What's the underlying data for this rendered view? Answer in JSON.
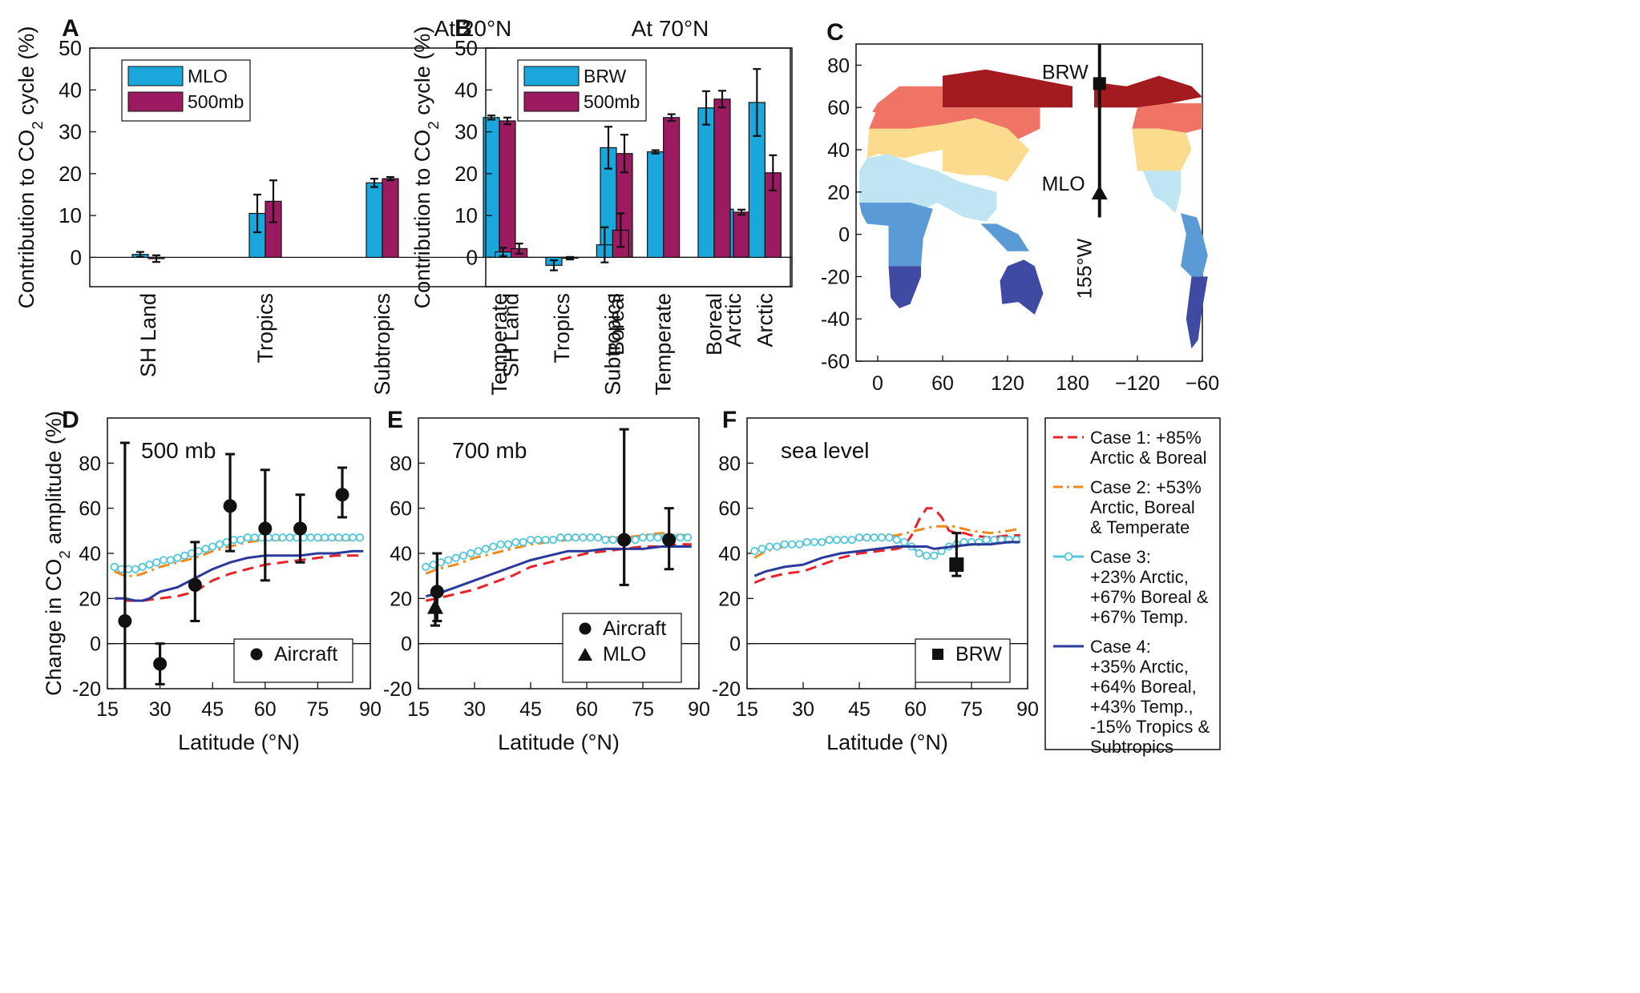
{
  "colors": {
    "mlo": "#1aa7dc",
    "p500": "#9c1a60",
    "case1": "#e8232a",
    "case2": "#f08a1d",
    "case3": "#55c7da",
    "case4": "#2a3a9a",
    "map_arctic_dark": "#a31a1f",
    "map_boreal": "#f07465",
    "map_temperate": "#fbdc8e",
    "map_subtropics": "#bfe5f3",
    "map_tropics": "#5b9bd5",
    "map_sh": "#3f4ba3"
  },
  "chart_data": [
    {
      "panel": "A",
      "type": "bar",
      "title": "At 20°N",
      "ylabel": "Contribution to CO2 cycle (%)",
      "ylabel_parts": [
        "Contribution to CO",
        "2",
        " cycle (%)"
      ],
      "ylim": [
        -7,
        50
      ],
      "yticks": [
        0,
        10,
        20,
        30,
        40,
        50
      ],
      "categories": [
        "SH Land",
        "Tropics",
        "Subtropics",
        "Temperate",
        "Boreal",
        "Arctic"
      ],
      "legend": "top-left",
      "series": [
        {
          "name": "MLO",
          "values": [
            0.7,
            10.5,
            17.8,
            33.4,
            26.2,
            11.5
          ],
          "err": [
            0.6,
            4.5,
            1.0,
            0.5,
            5.0,
            0.4
          ]
        },
        {
          "name": "500mb",
          "values": [
            -0.3,
            13.4,
            18.8,
            32.6,
            24.8,
            10.8
          ],
          "err": [
            0.8,
            5.0,
            0.4,
            0.8,
            4.5,
            0.6
          ]
        }
      ]
    },
    {
      "panel": "B",
      "type": "bar",
      "title": "At 70°N",
      "ylabel": "Contribution to CO2 cycle (%)",
      "ylabel_parts": [
        "Contribution to CO",
        "2",
        " cycle (%)"
      ],
      "ylim": [
        -7,
        50
      ],
      "yticks": [
        0,
        10,
        20,
        30,
        40,
        50
      ],
      "categories": [
        "SH Land",
        "Tropics",
        "Subtropics",
        "Temperate",
        "Boreal",
        "Arctic"
      ],
      "legend": "top-left",
      "series": [
        {
          "name": "BRW",
          "values": [
            1.3,
            -1.9,
            3.0,
            25.2,
            35.7,
            37.0
          ],
          "err": [
            1.0,
            1.2,
            4.2,
            0.4,
            4.0,
            8.0
          ]
        },
        {
          "name": "500mb",
          "values": [
            2.1,
            -0.2,
            6.5,
            33.4,
            37.8,
            20.2
          ],
          "err": [
            1.2,
            0.3,
            4.0,
            0.8,
            2.0,
            4.2
          ]
        }
      ]
    },
    {
      "panel": "C",
      "type": "map",
      "xticks": [
        "0",
        "60",
        "120",
        "180",
        "−120",
        "−60"
      ],
      "yticks": [
        80,
        60,
        40,
        20,
        0,
        -20,
        -40,
        -60
      ],
      "ylim": [
        -60,
        90
      ],
      "x_range_lon": [
        -20,
        300
      ],
      "annotations": {
        "brw": "BRW",
        "mlo": "MLO",
        "meridian": "155°W"
      },
      "stations": [
        {
          "name": "BRW",
          "lat": 71.3
        },
        {
          "name": "MLO",
          "lat": 19.5
        }
      ],
      "meridian_lon": 205
    },
    {
      "panel": "D",
      "type": "line",
      "title": "500 mb",
      "ylabel": "Change in CO2 amplitude (%)",
      "ylabel_parts": [
        "Change in CO",
        "2",
        " amplitude (%)"
      ],
      "xlabel": "Latitude (°N)",
      "xlim": [
        15,
        90
      ],
      "ylim": [
        -20,
        100
      ],
      "xticks": [
        15,
        30,
        45,
        60,
        75,
        90
      ],
      "yticks": [
        -20,
        0,
        20,
        40,
        60,
        80
      ],
      "legend": "bottom-right",
      "legend_entries": [
        "Aircraft"
      ],
      "series": [
        {
          "name": "Case 1: +85% Arctic & Boreal",
          "style": "dashed",
          "x": [
            20,
            25,
            30,
            35,
            40,
            45,
            50,
            55,
            60,
            65,
            70,
            75,
            80,
            85,
            88
          ],
          "y": [
            19,
            19,
            20,
            21,
            23,
            28,
            31,
            33,
            35,
            36,
            37,
            38,
            39,
            39,
            39
          ]
        },
        {
          "name": "Case 2: +53% Arctic, Boreal & Temperate",
          "style": "dashdot",
          "x": [
            17,
            20,
            23,
            25,
            30,
            35,
            40,
            45,
            50,
            55,
            60,
            65,
            70,
            75,
            80,
            85,
            88
          ],
          "y": [
            32,
            30,
            30,
            31,
            34,
            36,
            38,
            41,
            43,
            45,
            46,
            46,
            46,
            46,
            46,
            46,
            46
          ]
        },
        {
          "name": "Case 3: +23% Arctic, +67% Boreal & +67% Temp.",
          "style": "circles",
          "x": [
            17,
            19,
            21,
            23,
            25,
            27,
            29,
            31,
            33,
            35,
            37,
            39,
            41,
            43,
            45,
            47,
            49,
            51,
            53,
            55,
            57,
            59,
            61,
            63,
            65,
            67,
            69,
            71,
            73,
            75,
            77,
            79,
            81,
            83,
            85,
            87
          ],
          "y": [
            34,
            33,
            33,
            33,
            34,
            35,
            36,
            37,
            37,
            38,
            39,
            40,
            41,
            42,
            43,
            44,
            45,
            46,
            46,
            47,
            47,
            47,
            47,
            47,
            47,
            47,
            47,
            47,
            47,
            47,
            47,
            47,
            47,
            47,
            47,
            47
          ]
        },
        {
          "name": "Case 4: +35% Arctic, +64% Boreal, +43% Temp., -15% Tropics & Subtropics",
          "style": "solid",
          "x": [
            17,
            20,
            23,
            25,
            27,
            30,
            35,
            40,
            45,
            50,
            55,
            60,
            65,
            70,
            75,
            80,
            85,
            88
          ],
          "y": [
            20,
            20,
            19,
            19,
            20,
            23,
            25,
            29,
            33,
            36,
            38,
            39,
            39,
            39,
            40,
            40,
            41,
            41
          ]
        }
      ],
      "aircraft": [
        {
          "x": 20,
          "y": 10,
          "lo": -20,
          "hi": 89
        },
        {
          "x": 30,
          "y": -9,
          "lo": -18,
          "hi": 0
        },
        {
          "x": 40,
          "y": 26,
          "lo": 10,
          "hi": 45
        },
        {
          "x": 50,
          "y": 61,
          "lo": 41,
          "hi": 84
        },
        {
          "x": 60,
          "y": 51,
          "lo": 28,
          "hi": 77
        },
        {
          "x": 70,
          "y": 51,
          "lo": 36,
          "hi": 66
        },
        {
          "x": 82,
          "y": 66,
          "lo": 56,
          "hi": 78
        }
      ]
    },
    {
      "panel": "E",
      "type": "line",
      "title": "700 mb",
      "xlabel": "Latitude (°N)",
      "xlim": [
        15,
        90
      ],
      "ylim": [
        -20,
        100
      ],
      "xticks": [
        15,
        30,
        45,
        60,
        75,
        90
      ],
      "yticks": [
        -20,
        0,
        20,
        40,
        60,
        80
      ],
      "legend": "bottom-right",
      "legend_entries": [
        "Aircraft",
        "MLO"
      ],
      "series": [
        {
          "name": "Case 1",
          "style": "dashed",
          "x": [
            17,
            20,
            25,
            30,
            35,
            40,
            45,
            50,
            55,
            60,
            65,
            70,
            75,
            80,
            85,
            88
          ],
          "y": [
            19,
            20,
            22,
            24,
            27,
            30,
            34,
            36,
            38,
            40,
            41,
            42,
            43,
            43,
            44,
            44
          ]
        },
        {
          "name": "Case 2",
          "style": "dashdot",
          "x": [
            17,
            20,
            25,
            30,
            35,
            40,
            45,
            50,
            55,
            60,
            65,
            70,
            75,
            80,
            85,
            88
          ],
          "y": [
            31,
            33,
            35,
            38,
            40,
            42,
            44,
            45,
            46,
            47,
            47,
            47,
            48,
            49,
            48,
            48
          ]
        },
        {
          "name": "Case 3",
          "style": "circles",
          "x": [
            17,
            19,
            21,
            23,
            25,
            27,
            29,
            31,
            33,
            35,
            37,
            39,
            41,
            43,
            45,
            47,
            49,
            51,
            53,
            55,
            57,
            59,
            61,
            63,
            65,
            67,
            69,
            71,
            73,
            75,
            77,
            79,
            81,
            83,
            85,
            87
          ],
          "y": [
            34,
            35,
            36,
            37,
            38,
            39,
            40,
            41,
            42,
            43,
            44,
            44,
            45,
            45,
            46,
            46,
            46,
            46,
            47,
            47,
            47,
            47,
            47,
            47,
            46,
            46,
            46,
            46,
            46,
            47,
            47,
            47,
            47,
            47,
            47,
            47
          ]
        },
        {
          "name": "Case 4",
          "style": "solid",
          "x": [
            17,
            20,
            25,
            30,
            35,
            40,
            45,
            50,
            55,
            60,
            65,
            70,
            75,
            80,
            85,
            88
          ],
          "y": [
            21,
            22,
            25,
            28,
            31,
            34,
            37,
            39,
            41,
            41,
            42,
            42,
            42,
            43,
            43,
            43
          ]
        }
      ],
      "aircraft": [
        {
          "x": 20,
          "y": 23,
          "lo": 10,
          "hi": 40
        },
        {
          "x": 70,
          "y": 46,
          "lo": 26,
          "hi": 95
        },
        {
          "x": 82,
          "y": 46,
          "lo": 33,
          "hi": 60
        }
      ],
      "mlo": [
        {
          "x": 19.5,
          "y": 16,
          "lo": 8,
          "hi": 22
        }
      ]
    },
    {
      "panel": "F",
      "type": "line",
      "title": "sea level",
      "xlabel": "Latitude (°N)",
      "xlim": [
        15,
        90
      ],
      "ylim": [
        -20,
        100
      ],
      "xticks": [
        15,
        30,
        45,
        60,
        75,
        90
      ],
      "yticks": [
        -20,
        0,
        20,
        40,
        60,
        80
      ],
      "legend": "bottom-right",
      "legend_entries": [
        "BRW"
      ],
      "series": [
        {
          "name": "Case 1",
          "style": "dashed",
          "x": [
            17,
            20,
            25,
            30,
            35,
            40,
            45,
            50,
            55,
            57,
            59,
            61,
            63,
            65,
            67,
            69,
            71,
            73,
            75,
            80,
            85,
            88
          ],
          "y": [
            27,
            29,
            31,
            32,
            35,
            38,
            40,
            41,
            42,
            43,
            48,
            55,
            60,
            60,
            56,
            50,
            49,
            49,
            48,
            47,
            48,
            48
          ]
        },
        {
          "name": "Case 2",
          "style": "dashdot",
          "x": [
            17,
            20,
            25,
            30,
            35,
            40,
            45,
            50,
            55,
            60,
            65,
            70,
            75,
            80,
            85,
            88
          ],
          "y": [
            38,
            41,
            43,
            44,
            45,
            46,
            46,
            47,
            48,
            50,
            52,
            52,
            50,
            49,
            50,
            51
          ]
        },
        {
          "name": "Case 3",
          "style": "circles",
          "x": [
            17,
            19,
            21,
            23,
            25,
            27,
            29,
            31,
            33,
            35,
            37,
            39,
            41,
            43,
            45,
            47,
            49,
            51,
            53,
            55,
            57,
            59,
            61,
            63,
            65,
            67,
            69,
            71,
            73,
            75,
            77,
            79,
            81,
            83,
            85,
            87
          ],
          "y": [
            41,
            42,
            43,
            43,
            44,
            44,
            44,
            45,
            45,
            45,
            46,
            46,
            46,
            46,
            47,
            47,
            47,
            47,
            47,
            46,
            45,
            43,
            40,
            39,
            39,
            41,
            43,
            44,
            45,
            45,
            45,
            46,
            46,
            46,
            46,
            46
          ]
        },
        {
          "name": "Case 4",
          "style": "solid",
          "x": [
            17,
            20,
            25,
            30,
            35,
            40,
            45,
            50,
            55,
            58,
            60,
            63,
            65,
            70,
            75,
            80,
            85,
            88
          ],
          "y": [
            30,
            32,
            34,
            35,
            38,
            40,
            41,
            42,
            43,
            43,
            43,
            43,
            42,
            43,
            44,
            44,
            45,
            45
          ]
        }
      ],
      "brw": [
        {
          "x": 71,
          "y": 35,
          "lo": 30,
          "hi": 49
        }
      ]
    }
  ],
  "side_legend": [
    {
      "key": "case1",
      "style": "dashed",
      "lines": [
        "Case 1: +85%",
        "Arctic & Boreal"
      ]
    },
    {
      "key": "case2",
      "style": "dashdot",
      "lines": [
        "Case 2: +53%",
        "Arctic, Boreal",
        "& Temperate"
      ]
    },
    {
      "key": "case3",
      "style": "circles",
      "lines": [
        "Case 3:",
        "+23% Arctic,",
        "+67% Boreal &",
        "+67% Temp."
      ]
    },
    {
      "key": "case4",
      "style": "solid",
      "lines": [
        "Case 4:",
        "+35% Arctic,",
        "+64% Boreal,",
        "+43% Temp.,",
        "-15% Tropics &",
        "Subtropics"
      ]
    }
  ]
}
